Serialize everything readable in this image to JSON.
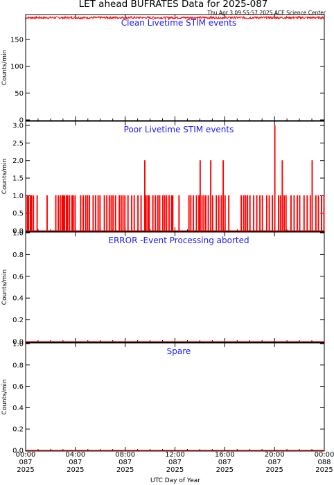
{
  "page": {
    "title": "LET ahead BUFRATES Data for 2025-087",
    "timestamp": "Thu Apr  3 09:55:57 2025 ACE Science Center",
    "xlabel": "UTC Day of Year"
  },
  "colors": {
    "trace": "#ff0000",
    "panel_title": "#1a1aff",
    "axes": "#000000"
  },
  "x_ticks": [
    {
      "time": "00:00",
      "doy": "087",
      "year": "2025",
      "hour": 0
    },
    {
      "time": "04:00",
      "doy": "087",
      "year": "2025",
      "hour": 4
    },
    {
      "time": "08:00",
      "doy": "087",
      "year": "2025",
      "hour": 8
    },
    {
      "time": "12:00",
      "doy": "087",
      "year": "2025",
      "hour": 12
    },
    {
      "time": "16:00",
      "doy": "087",
      "year": "2025",
      "hour": 16
    },
    {
      "time": "20:00",
      "doy": "087",
      "year": "2025",
      "hour": 20
    },
    {
      "time": "00:00",
      "doy": "088",
      "year": "2025",
      "hour": 24
    }
  ],
  "chart_data": [
    {
      "type": "line",
      "title": "Clean Livetime STIM events",
      "ylabel": "Counts/min",
      "ylim": [
        0,
        195
      ],
      "yticks": [
        0,
        50,
        100,
        150
      ],
      "xlim_hours": [
        0,
        24
      ],
      "series": [
        {
          "description": "noisy, approximately constant near 190 counts/min all day",
          "points": [
            [
              0,
              190
            ],
            [
              2,
              191
            ],
            [
              4,
              190
            ],
            [
              6,
              191
            ],
            [
              8,
              190
            ],
            [
              10,
              191
            ],
            [
              12,
              190
            ],
            [
              14,
              191
            ],
            [
              16,
              190
            ],
            [
              18,
              191
            ],
            [
              20,
              190
            ],
            [
              22,
              191
            ],
            [
              24,
              190
            ]
          ]
        }
      ]
    },
    {
      "type": "line",
      "title": "Poor Livetime STIM events",
      "ylabel": "Counts/min",
      "ylim": [
        0,
        3.1
      ],
      "yticks": [
        0.0,
        0.5,
        1.0,
        1.5,
        2.0,
        2.5,
        3.0
      ],
      "xlim_hours": [
        0,
        24
      ],
      "series": [
        {
          "baseline": 0,
          "spikes": [
            [
              0.1,
              1
            ],
            [
              0.2,
              1
            ],
            [
              0.35,
              1
            ],
            [
              0.45,
              1
            ],
            [
              0.6,
              1
            ],
            [
              0.9,
              1
            ],
            [
              1.7,
              1
            ],
            [
              2.4,
              1
            ],
            [
              2.6,
              1
            ],
            [
              2.75,
              1
            ],
            [
              2.9,
              1
            ],
            [
              3.0,
              1
            ],
            [
              3.1,
              1
            ],
            [
              3.25,
              1
            ],
            [
              3.35,
              1
            ],
            [
              3.5,
              1
            ],
            [
              3.7,
              1
            ],
            [
              3.8,
              1
            ],
            [
              3.95,
              1
            ],
            [
              4.4,
              1
            ],
            [
              4.6,
              1
            ],
            [
              4.8,
              1
            ],
            [
              4.95,
              1
            ],
            [
              5.1,
              1
            ],
            [
              5.4,
              1
            ],
            [
              5.6,
              1
            ],
            [
              5.8,
              1
            ],
            [
              5.95,
              1
            ],
            [
              6.3,
              1
            ],
            [
              6.5,
              1
            ],
            [
              6.7,
              1
            ],
            [
              6.85,
              1
            ],
            [
              7.0,
              1
            ],
            [
              7.2,
              1
            ],
            [
              7.5,
              1
            ],
            [
              7.65,
              1
            ],
            [
              7.8,
              1
            ],
            [
              7.95,
              1
            ],
            [
              8.2,
              1
            ],
            [
              8.5,
              1
            ],
            [
              8.7,
              1
            ],
            [
              9.0,
              1
            ],
            [
              9.25,
              1
            ],
            [
              9.55,
              2
            ],
            [
              9.65,
              1
            ],
            [
              9.8,
              1
            ],
            [
              9.9,
              1
            ],
            [
              10.2,
              1
            ],
            [
              10.4,
              1
            ],
            [
              10.6,
              1
            ],
            [
              10.75,
              1
            ],
            [
              11.0,
              1
            ],
            [
              11.15,
              1
            ],
            [
              11.3,
              1
            ],
            [
              11.5,
              1
            ],
            [
              11.7,
              1
            ],
            [
              11.8,
              1
            ],
            [
              12.3,
              1
            ],
            [
              13.1,
              1
            ],
            [
              13.25,
              1
            ],
            [
              13.45,
              1
            ],
            [
              13.7,
              1
            ],
            [
              13.9,
              1
            ],
            [
              14.0,
              2
            ],
            [
              14.15,
              1
            ],
            [
              14.3,
              1
            ],
            [
              14.45,
              1
            ],
            [
              14.65,
              1
            ],
            [
              14.85,
              2
            ],
            [
              15.0,
              1
            ],
            [
              15.3,
              1
            ],
            [
              15.5,
              1
            ],
            [
              15.7,
              1
            ],
            [
              15.85,
              2
            ],
            [
              16.0,
              1
            ],
            [
              16.3,
              1
            ],
            [
              17.3,
              1
            ],
            [
              17.5,
              1
            ],
            [
              17.65,
              1
            ],
            [
              17.8,
              1
            ],
            [
              18.0,
              1
            ],
            [
              18.3,
              1
            ],
            [
              18.55,
              1
            ],
            [
              18.8,
              1
            ],
            [
              19.0,
              1
            ],
            [
              19.35,
              1
            ],
            [
              19.55,
              1
            ],
            [
              19.8,
              1
            ],
            [
              20.0,
              3
            ],
            [
              20.3,
              1
            ],
            [
              20.45,
              1
            ],
            [
              20.6,
              2
            ],
            [
              20.75,
              1
            ],
            [
              20.9,
              1
            ],
            [
              21.3,
              1
            ],
            [
              21.55,
              1
            ],
            [
              21.8,
              1
            ],
            [
              22.0,
              1
            ],
            [
              22.35,
              1
            ],
            [
              22.6,
              1
            ],
            [
              22.85,
              1
            ],
            [
              23.0,
              2
            ],
            [
              23.3,
              1
            ],
            [
              23.5,
              1
            ],
            [
              23.75,
              1
            ],
            [
              23.95,
              1
            ]
          ]
        }
      ]
    },
    {
      "type": "line",
      "title": "ERROR -Event Processing aborted",
      "ylabel": "Counts/min",
      "ylim": [
        0,
        1.0
      ],
      "yticks": [
        0.0,
        0.2,
        0.4,
        0.6,
        0.8,
        1.0
      ],
      "xlim_hours": [
        0,
        24
      ],
      "series": [
        {
          "points": [
            [
              0,
              0
            ],
            [
              24,
              0
            ]
          ]
        }
      ]
    },
    {
      "type": "line",
      "title": "Spare",
      "ylabel": "Counts/min",
      "ylim": [
        0,
        1.0
      ],
      "yticks": [
        0.0,
        0.2,
        0.4,
        0.6,
        0.8,
        1.0
      ],
      "xlim_hours": [
        0,
        24
      ],
      "series": [
        {
          "points": [
            [
              0,
              0
            ],
            [
              24,
              0
            ]
          ]
        }
      ]
    }
  ]
}
